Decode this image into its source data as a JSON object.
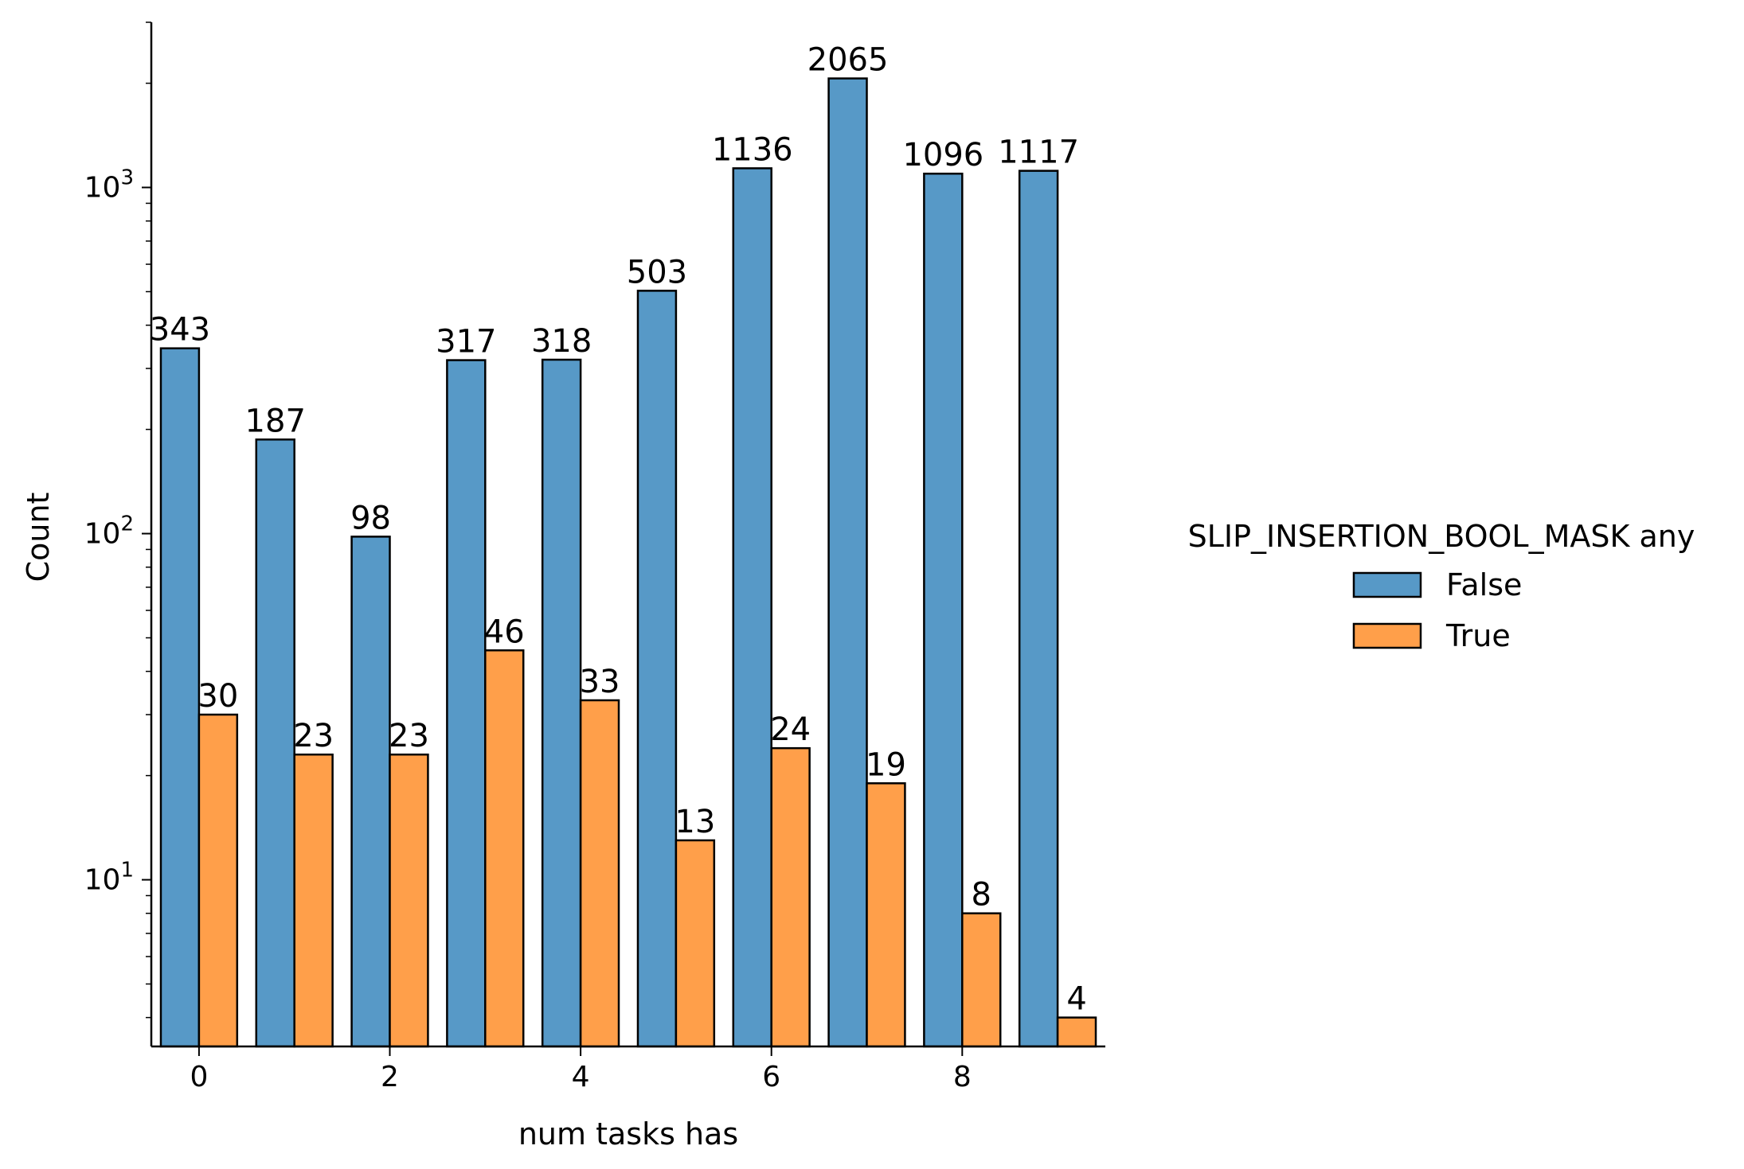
{
  "chart_data": {
    "type": "bar",
    "yscale": "log",
    "xlabel": "num tasks has",
    "ylabel": "Count",
    "x": [
      0,
      1,
      2,
      3,
      4,
      5,
      6,
      7,
      8,
      9
    ],
    "x_ticks": [
      0,
      2,
      4,
      6,
      8
    ],
    "xlim": [
      -0.5,
      9.5
    ],
    "ylim": [
      3.3,
      3000
    ],
    "y_major_ticks": [
      {
        "value": 10,
        "base": "10",
        "exp": "1"
      },
      {
        "value": 100,
        "base": "10",
        "exp": "2"
      },
      {
        "value": 1000,
        "base": "10",
        "exp": "3"
      }
    ],
    "series": [
      {
        "name": "False",
        "color": "#5799c7",
        "values": [
          343,
          187,
          98,
          317,
          318,
          503,
          1136,
          2065,
          1096,
          1117
        ]
      },
      {
        "name": "True",
        "color": "#ff9f4a",
        "values": [
          30,
          23,
          23,
          46,
          33,
          13,
          24,
          19,
          8,
          4
        ]
      }
    ],
    "legend": {
      "title": "SLIP_INSERTION_BOOL_MASK any",
      "placement": "right"
    },
    "grid": false
  }
}
